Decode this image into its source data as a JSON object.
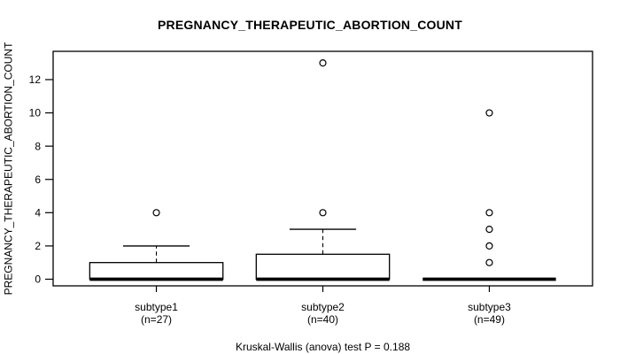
{
  "colors": {
    "foreground": "#000000",
    "background": "#ffffff"
  },
  "chart_data": {
    "type": "boxplot",
    "title": "PREGNANCY_THERAPEUTIC_ABORTION_COUNT",
    "ylabel": "PREGNANCY_THERAPEUTIC_ABORTION_COUNT",
    "xlabel": "",
    "caption": "Kruskal-Wallis (anova) test P = 0.188",
    "test": "Kruskal-Wallis (anova)",
    "p_value": 0.188,
    "grid": false,
    "legend": "none",
    "yticks": [
      0,
      2,
      4,
      6,
      8,
      10,
      12
    ],
    "ylim": [
      -0.4,
      13.7
    ],
    "categories": [
      "subtype1",
      "subtype2",
      "subtype3"
    ],
    "groups": [
      {
        "label": "subtype1",
        "n_label": "(n=27)",
        "n": 27,
        "q1": 0,
        "median": 0,
        "q3": 1,
        "whisker_low": 0,
        "whisker_high": 2,
        "outliers": [
          4
        ]
      },
      {
        "label": "subtype2",
        "n_label": "(n=40)",
        "n": 40,
        "q1": 0,
        "median": 0,
        "q3": 1.5,
        "whisker_low": 0,
        "whisker_high": 3,
        "outliers": [
          4,
          13
        ]
      },
      {
        "label": "subtype3",
        "n_label": "(n=49)",
        "n": 49,
        "q1": 0,
        "median": 0,
        "q3": 0,
        "whisker_low": 0,
        "whisker_high": 0,
        "outliers": [
          1,
          2,
          3,
          4,
          10
        ]
      }
    ]
  }
}
